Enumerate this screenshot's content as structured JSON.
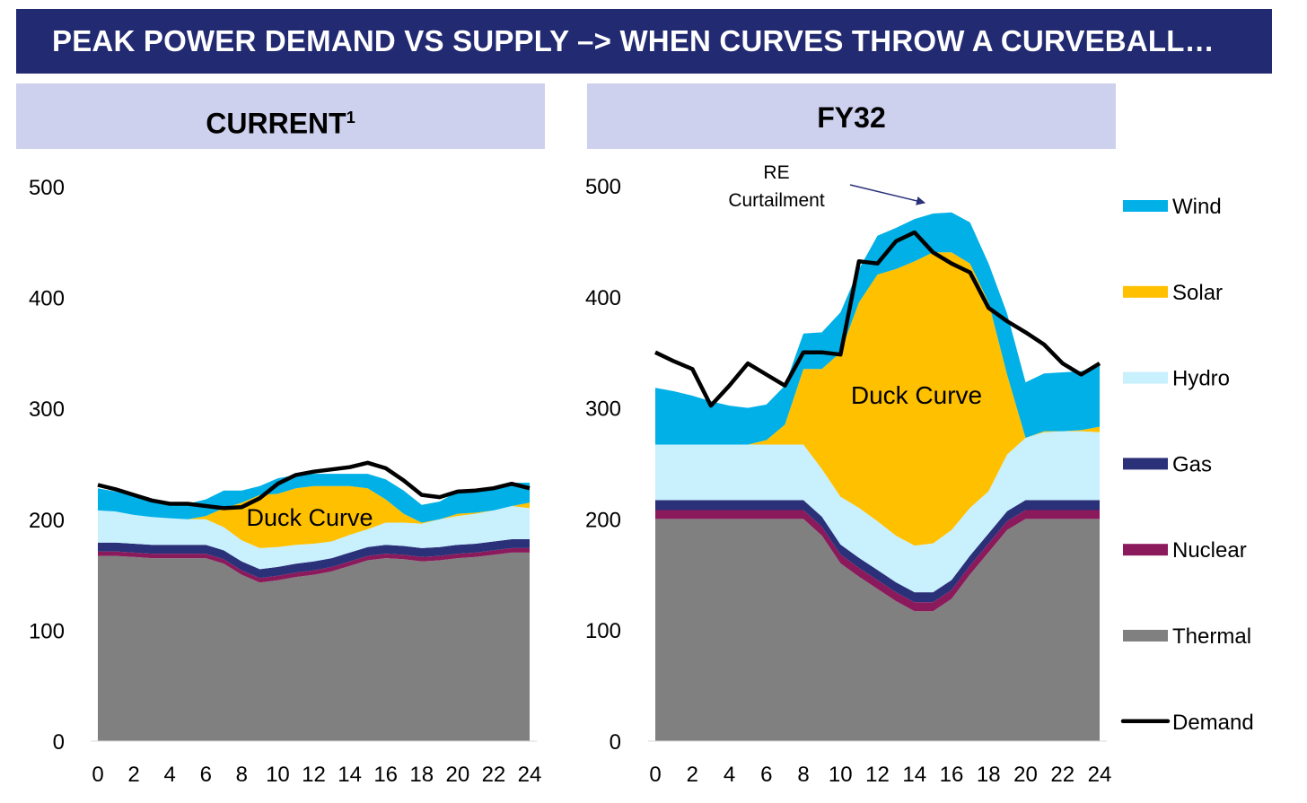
{
  "title": "PEAK POWER DEMAND VS SUPPLY –> WHEN CURVES THROW A CURVEBALL…",
  "colors": {
    "Wind": "#00b0e6",
    "Solar": "#ffc000",
    "Hydro": "#c8f0fd",
    "Gas": "#2a3179",
    "Nuclear": "#8b1a5c",
    "Thermal": "#808080",
    "Demand": "#000000",
    "title_bg": "#222a72",
    "header_bg": "#cdd1ee"
  },
  "legend": [
    "Wind",
    "Solar",
    "Hydro",
    "Gas",
    "Nuclear",
    "Thermal",
    "Demand"
  ],
  "chart_data": [
    {
      "type": "area",
      "stacked": true,
      "title": "CURRENT",
      "title_superscript": "1",
      "annotation": "Duck Curve",
      "x": [
        0,
        1,
        2,
        3,
        4,
        5,
        6,
        7,
        8,
        9,
        10,
        11,
        12,
        13,
        14,
        15,
        16,
        17,
        18,
        19,
        20,
        21,
        22,
        23,
        24
      ],
      "xticks": [
        0,
        2,
        4,
        6,
        8,
        10,
        12,
        14,
        16,
        18,
        20,
        22,
        24
      ],
      "yticks": [
        0,
        100,
        200,
        300,
        400,
        500
      ],
      "ylim": [
        0,
        500
      ],
      "series": [
        {
          "name": "Thermal",
          "values": [
            167,
            167,
            166,
            165,
            165,
            165,
            165,
            160,
            150,
            143,
            145,
            148,
            150,
            153,
            158,
            163,
            165,
            164,
            162,
            163,
            165,
            166,
            168,
            170,
            170
          ]
        },
        {
          "name": "Nuclear",
          "values": [
            4,
            4,
            4,
            4,
            4,
            4,
            4,
            4,
            4,
            4,
            4,
            4,
            4,
            4,
            4,
            4,
            4,
            4,
            4,
            4,
            4,
            4,
            4,
            4,
            4
          ]
        },
        {
          "name": "Gas",
          "values": [
            8,
            8,
            8,
            8,
            8,
            8,
            8,
            8,
            8,
            8,
            8,
            8,
            8,
            8,
            8,
            8,
            8,
            8,
            8,
            8,
            8,
            8,
            8,
            8,
            8
          ]
        },
        {
          "name": "Hydro",
          "values": [
            29,
            28,
            26,
            25,
            24,
            23,
            23,
            21,
            19,
            19,
            18,
            17,
            16,
            15,
            16,
            16,
            20,
            21,
            22,
            25,
            26,
            27,
            28,
            30,
            28
          ]
        },
        {
          "name": "Solar",
          "values": [
            0,
            0,
            0,
            0,
            0,
            0,
            3,
            17,
            34,
            48,
            48,
            51,
            52,
            50,
            44,
            37,
            21,
            8,
            1,
            0,
            2,
            1,
            0,
            0,
            5
          ]
        },
        {
          "name": "Wind",
          "values": [
            20,
            18,
            17,
            15,
            14,
            14,
            15,
            16,
            11,
            8,
            14,
            12,
            11,
            11,
            11,
            13,
            18,
            21,
            16,
            16,
            20,
            20,
            20,
            21,
            18
          ]
        }
      ],
      "demand": [
        231,
        227,
        222,
        217,
        214,
        214,
        212,
        210,
        211,
        219,
        232,
        240,
        243,
        245,
        247,
        251,
        246,
        235,
        222,
        220,
        225,
        226,
        228,
        232,
        228
      ]
    },
    {
      "type": "area",
      "stacked": true,
      "title": "FY32",
      "annotation": "Duck Curve",
      "callout": [
        "RE",
        "Curtailment"
      ],
      "x": [
        0,
        1,
        2,
        3,
        4,
        5,
        6,
        7,
        8,
        9,
        10,
        11,
        12,
        13,
        14,
        15,
        16,
        17,
        18,
        19,
        20,
        21,
        22,
        23,
        24
      ],
      "xticks": [
        0,
        2,
        4,
        6,
        8,
        10,
        12,
        14,
        16,
        18,
        20,
        22,
        24
      ],
      "yticks": [
        0,
        100,
        200,
        300,
        400,
        500
      ],
      "ylim": [
        0,
        500
      ],
      "series": [
        {
          "name": "Thermal",
          "values": [
            200,
            200,
            200,
            200,
            200,
            200,
            200,
            200,
            200,
            185,
            160,
            148,
            137,
            126,
            117,
            117,
            128,
            150,
            170,
            190,
            200,
            200,
            200,
            200,
            200
          ]
        },
        {
          "name": "Nuclear",
          "values": [
            8,
            8,
            8,
            8,
            8,
            8,
            8,
            8,
            8,
            8,
            8,
            8,
            8,
            8,
            8,
            8,
            8,
            8,
            8,
            8,
            8,
            8,
            8,
            8,
            8
          ]
        },
        {
          "name": "Gas",
          "values": [
            9,
            9,
            9,
            9,
            9,
            9,
            9,
            9,
            9,
            9,
            9,
            9,
            9,
            9,
            9,
            9,
            9,
            9,
            9,
            9,
            9,
            9,
            9,
            9,
            9
          ]
        },
        {
          "name": "Hydro",
          "values": [
            50,
            50,
            50,
            50,
            50,
            50,
            50,
            50,
            50,
            43,
            43,
            45,
            44,
            42,
            42,
            44,
            45,
            43,
            38,
            51,
            56,
            61,
            62,
            62,
            61
          ]
        },
        {
          "name": "Solar",
          "values": [
            0,
            0,
            0,
            0,
            0,
            0,
            4,
            18,
            68,
            90,
            130,
            185,
            222,
            240,
            256,
            262,
            250,
            220,
            170,
            72,
            0,
            1,
            0,
            1,
            5
          ]
        },
        {
          "name": "Wind",
          "values": [
            51,
            48,
            44,
            39,
            35,
            33,
            32,
            35,
            32,
            33,
            36,
            30,
            35,
            37,
            38,
            35,
            36,
            37,
            35,
            55,
            50,
            52,
            53,
            53,
            55
          ]
        }
      ],
      "demand": [
        350,
        342,
        335,
        302,
        320,
        340,
        330,
        320,
        350,
        350,
        348,
        432,
        430,
        450,
        458,
        440,
        430,
        422,
        390,
        378,
        368,
        357,
        340,
        330,
        340
      ]
    }
  ]
}
